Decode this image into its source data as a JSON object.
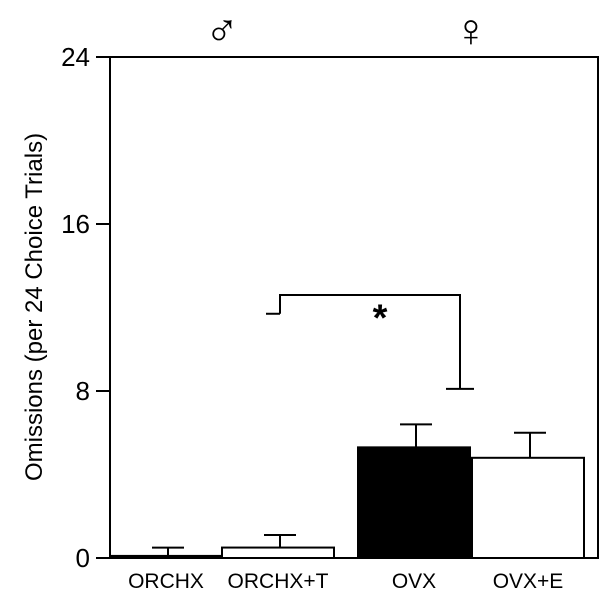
{
  "chart_data": {
    "type": "bar",
    "title": "",
    "xlabel": "",
    "ylabel": "Omissions (per 24 Choice Trials)",
    "ylim": [
      0,
      24
    ],
    "yticks": [
      0,
      8,
      16,
      24
    ],
    "categories": [
      "ORCHX",
      "ORCHX+T",
      "OVX",
      "OVX+E"
    ],
    "values": [
      0.1,
      0.5,
      5.3,
      4.8
    ],
    "errors": [
      0.4,
      0.6,
      1.1,
      1.2
    ],
    "bar_fills": [
      "#000000",
      "#ffffff",
      "#000000",
      "#ffffff"
    ],
    "group_symbols": [
      "♂",
      "♀"
    ],
    "significance": {
      "label": "*",
      "left_category": "ORCHX+T",
      "right_category": "OVX",
      "left_end_value": 11.7,
      "right_end_value": 8.1,
      "bracket_value": 12.6
    },
    "grid": false,
    "legend": "none"
  }
}
